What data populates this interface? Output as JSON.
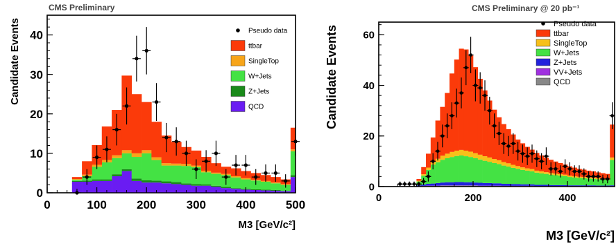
{
  "chart_data": [
    {
      "type": "bar",
      "stacked": true,
      "title": "CMS Preliminary",
      "xlabel": "M3 [GeV/c²]",
      "ylabel": "Candidate Events",
      "xlim": [
        0,
        500
      ],
      "ylim": [
        0,
        45
      ],
      "xticks": [
        "0",
        "100",
        "200",
        "300",
        "400",
        "500"
      ],
      "yticks": [
        "0",
        "10",
        "20",
        "30",
        "40"
      ],
      "bin_edges": [
        50,
        70,
        90,
        110,
        130,
        150,
        170,
        190,
        210,
        230,
        250,
        270,
        290,
        310,
        330,
        350,
        370,
        390,
        410,
        430,
        450,
        470,
        490,
        500
      ],
      "series": [
        {
          "name": "QCD",
          "color": "#6a1cf2",
          "values": [
            2.8,
            2.8,
            3.0,
            3.0,
            4.2,
            5.5,
            3.0,
            2.6,
            2.6,
            2.4,
            2.2,
            2.0,
            1.8,
            1.8,
            1.5,
            1.2,
            1.0,
            0.8,
            0.7,
            0.6,
            0.5,
            0.4,
            4.0
          ]
        },
        {
          "name": "Z+Jets",
          "color": "#1a8a1a",
          "values": [
            0.2,
            0.3,
            0.4,
            0.4,
            0.5,
            0.5,
            0.6,
            0.6,
            0.5,
            0.5,
            0.5,
            0.4,
            0.4,
            0.3,
            0.3,
            0.3,
            0.2,
            0.2,
            0.2,
            0.2,
            0.2,
            0.1,
            0.5
          ]
        },
        {
          "name": "W+Jets",
          "color": "#44e244",
          "values": [
            0.3,
            1.1,
            3.2,
            4.3,
            4.1,
            4.0,
            5.5,
            6.8,
            5.2,
            4.0,
            4.2,
            4.4,
            4.3,
            3.1,
            3.0,
            3.0,
            2.7,
            2.4,
            2.2,
            2.0,
            1.7,
            1.5,
            6.0
          ]
        },
        {
          "name": "SingleTop",
          "color": "#f7a51a",
          "values": [
            0.2,
            0.4,
            0.5,
            0.6,
            0.7,
            0.8,
            0.9,
            0.8,
            0.7,
            0.6,
            0.5,
            0.5,
            0.4,
            0.4,
            0.3,
            0.3,
            0.3,
            0.3,
            0.2,
            0.2,
            0.2,
            0.2,
            0.5
          ]
        },
        {
          "name": "ttbar",
          "color": "#fb3a0a",
          "values": [
            0.5,
            3.4,
            5.0,
            8.5,
            11.5,
            18.9,
            15.0,
            12.2,
            9.0,
            7.0,
            5.5,
            4.3,
            3.8,
            3.5,
            2.4,
            1.8,
            2.0,
            1.8,
            1.7,
            1.5,
            1.4,
            1.2,
            5.5
          ]
        }
      ],
      "pseudo_data": {
        "name": "Pseudo data",
        "x": [
          60,
          80,
          100,
          120,
          140,
          160,
          180,
          200,
          220,
          240,
          260,
          280,
          300,
          320,
          340,
          360,
          380,
          400,
          420,
          440,
          460,
          480,
          500
        ],
        "y": [
          0,
          4,
          9,
          11,
          16,
          22,
          34,
          36,
          23,
          14,
          13,
          10,
          6,
          8,
          10,
          4,
          7,
          7,
          4,
          5,
          5,
          3,
          13
        ],
        "err": [
          1,
          2,
          3,
          3.3,
          4,
          4.7,
          5.8,
          6,
          4.8,
          3.7,
          3.6,
          3.2,
          2.5,
          2.8,
          3.2,
          2,
          2.6,
          2.6,
          2,
          2.2,
          2.2,
          1.7,
          3.6
        ]
      },
      "legend": {
        "position": "top-right",
        "order": [
          "Pseudo data",
          "ttbar",
          "SingleTop",
          "W+Jets",
          "Z+Jets",
          "QCD"
        ]
      }
    },
    {
      "type": "bar",
      "stacked": true,
      "title": "CMS Preliminary @ 20 pb⁻¹",
      "xlabel": "M3 [GeV/c²]",
      "ylabel": "Candidate Events",
      "xlim": [
        0,
        500
      ],
      "ylim": [
        0,
        65
      ],
      "xticks": [
        "0",
        "200",
        "400"
      ],
      "yticks": [
        "0",
        "20",
        "40",
        "60"
      ],
      "bin_edges": [
        80,
        90,
        100,
        110,
        120,
        130,
        140,
        150,
        160,
        170,
        180,
        190,
        200,
        210,
        220,
        230,
        240,
        250,
        260,
        270,
        280,
        290,
        300,
        310,
        320,
        330,
        340,
        350,
        360,
        370,
        380,
        390,
        400,
        410,
        420,
        430,
        440,
        450,
        460,
        470,
        480,
        490,
        500
      ],
      "series": [
        {
          "name": "QCD",
          "color": "#888888",
          "values": [
            0.1,
            0.2,
            0.3,
            0.3,
            0.3,
            0.4,
            0.4,
            0.4,
            0.4,
            0.4,
            0.4,
            0.4,
            0.4,
            0.3,
            0.3,
            0.3,
            0.3,
            0.3,
            0.2,
            0.2,
            0.2,
            0.2,
            0.2,
            0.2,
            0.2,
            0.1,
            0.1,
            0.1,
            0.1,
            0.1,
            0.1,
            0.1,
            0.1,
            0.1,
            0.1,
            0.1,
            0.1,
            0.1,
            0.1,
            0.1,
            0.1,
            0.1
          ]
        },
        {
          "name": "VV+Jets",
          "color": "#a030e0",
          "values": [
            0.1,
            0.1,
            0.1,
            0.1,
            0.1,
            0.1,
            0.1,
            0.1,
            0.1,
            0.1,
            0.1,
            0.1,
            0.1,
            0.1,
            0.1,
            0.1,
            0.1,
            0.1,
            0.1,
            0.1,
            0.1,
            0.1,
            0.1,
            0.1,
            0.1,
            0.1,
            0.1,
            0.1,
            0.1,
            0.1,
            0.1,
            0.1,
            0.1,
            0.1,
            0.1,
            0.1,
            0.1,
            0.1,
            0.1,
            0.1,
            0.1,
            0.1
          ]
        },
        {
          "name": "Z+Jets",
          "color": "#2222dd",
          "values": [
            0.3,
            0.5,
            0.7,
            0.8,
            1.0,
            1.1,
            1.2,
            1.2,
            1.3,
            1.3,
            1.2,
            1.2,
            1.1,
            1.1,
            1.0,
            1.0,
            0.9,
            0.9,
            0.8,
            0.8,
            0.7,
            0.7,
            0.6,
            0.6,
            0.6,
            0.5,
            0.5,
            0.5,
            0.4,
            0.4,
            0.4,
            0.4,
            0.3,
            0.3,
            0.3,
            0.3,
            0.3,
            0.3,
            0.2,
            0.2,
            0.2,
            0.3
          ]
        },
        {
          "name": "W+Jets",
          "color": "#44e244",
          "values": [
            1.5,
            3.5,
            5.5,
            7.5,
            8.2,
            9.0,
            9.5,
            10.0,
            10.3,
            10.5,
            10.3,
            10.0,
            9.6,
            9.2,
            8.8,
            8.4,
            8.0,
            7.6,
            7.2,
            6.8,
            6.4,
            6.0,
            5.7,
            5.4,
            5.1,
            4.8,
            4.5,
            4.3,
            4.1,
            3.9,
            3.7,
            3.5,
            3.3,
            3.1,
            2.9,
            2.8,
            2.7,
            2.6,
            2.5,
            2.4,
            2.3,
            10.0
          ]
        },
        {
          "name": "SingleTop",
          "color": "#f7c01a",
          "values": [
            0.3,
            0.6,
            0.9,
            1.2,
            1.4,
            1.6,
            1.8,
            2.0,
            2.1,
            2.2,
            2.2,
            2.1,
            2.0,
            1.9,
            1.8,
            1.7,
            1.6,
            1.5,
            1.4,
            1.3,
            1.2,
            1.1,
            1.0,
            0.9,
            0.9,
            0.8,
            0.8,
            0.7,
            0.7,
            0.6,
            0.6,
            0.6,
            0.5,
            0.5,
            0.5,
            0.5,
            0.4,
            0.4,
            0.4,
            0.4,
            0.4,
            1.0
          ]
        },
        {
          "name": "ttbar",
          "color": "#fb3a0a",
          "values": [
            0.7,
            2.8,
            5.5,
            9.5,
            15.1,
            19.3,
            24.0,
            31.0,
            36.0,
            40.0,
            40.0,
            38.0,
            34.0,
            30.0,
            26.0,
            22.5,
            19.5,
            17.0,
            15.0,
            13.5,
            12.0,
            10.5,
            9.5,
            8.5,
            7.7,
            7.0,
            6.3,
            5.7,
            5.2,
            4.8,
            4.4,
            4.0,
            3.7,
            3.4,
            3.1,
            2.9,
            2.7,
            2.5,
            2.3,
            2.1,
            1.9,
            13.0
          ]
        }
      ],
      "pseudo_data": {
        "name": "Pseudo data",
        "x": [
          45,
          55,
          65,
          75,
          85,
          95,
          105,
          115,
          125,
          135,
          145,
          155,
          165,
          175,
          185,
          195,
          205,
          215,
          225,
          235,
          245,
          255,
          265,
          275,
          285,
          295,
          305,
          315,
          325,
          335,
          345,
          355,
          365,
          375,
          385,
          395,
          405,
          415,
          425,
          435,
          445,
          455,
          465,
          475,
          485,
          495
        ],
        "y": [
          1,
          1,
          1,
          1,
          1,
          2,
          4,
          10,
          14,
          20,
          24,
          28,
          33,
          37,
          47,
          52,
          40,
          39,
          36,
          30,
          24,
          21,
          17,
          16,
          17,
          14,
          13,
          12,
          13,
          11,
          10,
          12,
          7,
          7,
          6,
          8,
          7,
          6,
          6,
          5,
          4,
          4,
          4,
          3,
          3,
          28
        ],
        "err": [
          1,
          1,
          1,
          1,
          1,
          1.4,
          2,
          3.2,
          3.7,
          4.5,
          4.9,
          5.3,
          5.7,
          6.1,
          6.9,
          7.2,
          6.3,
          6.2,
          6,
          5.5,
          4.9,
          4.6,
          4.1,
          4,
          4.1,
          3.7,
          3.6,
          3.5,
          3.6,
          3.3,
          3.2,
          3.5,
          2.6,
          2.6,
          2.4,
          2.8,
          2.6,
          2.4,
          2.4,
          2.2,
          2,
          2,
          2,
          1.7,
          1.7,
          5.3
        ]
      },
      "legend": {
        "position": "top-right",
        "order": [
          "Pseudo data",
          "ttbar",
          "SingleTop",
          "W+Jets",
          "Z+Jets",
          "VV+Jets",
          "QCD"
        ]
      }
    }
  ]
}
